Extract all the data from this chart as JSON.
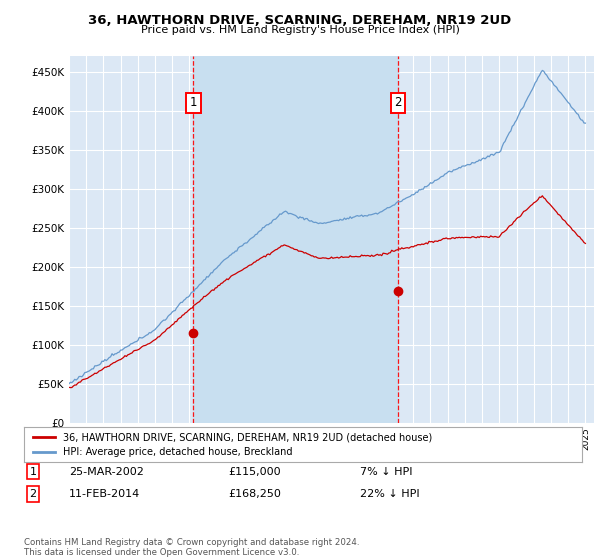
{
  "title": "36, HAWTHORN DRIVE, SCARNING, DEREHAM, NR19 2UD",
  "subtitle": "Price paid vs. HM Land Registry's House Price Index (HPI)",
  "plot_bg_color": "#dce8f5",
  "shaded_region_color": "#c8dff0",
  "hpi_color": "#6699cc",
  "price_color": "#cc0000",
  "sale1_year": 2002.23,
  "sale1_price": 115000,
  "sale2_year": 2014.12,
  "sale2_price": 168250,
  "yticks": [
    0,
    50000,
    100000,
    150000,
    200000,
    250000,
    300000,
    350000,
    400000,
    450000
  ],
  "ytick_labels": [
    "£0",
    "£50K",
    "£100K",
    "£150K",
    "£200K",
    "£250K",
    "£300K",
    "£350K",
    "£400K",
    "£450K"
  ],
  "legend_label_price": "36, HAWTHORN DRIVE, SCARNING, DEREHAM, NR19 2UD (detached house)",
  "legend_label_hpi": "HPI: Average price, detached house, Breckland",
  "footnote": "Contains HM Land Registry data © Crown copyright and database right 2024.\nThis data is licensed under the Open Government Licence v3.0."
}
